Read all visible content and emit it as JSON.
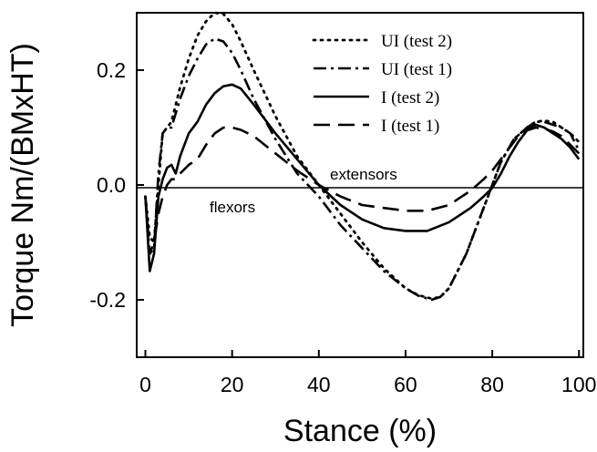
{
  "chart_data": {
    "type": "line",
    "title": "",
    "xlabel": "Stance (%)",
    "ylabel": "Torque Nm/(BMxHT)",
    "xlim": [
      -2,
      101
    ],
    "ylim": [
      -0.3,
      0.3
    ],
    "x_ticks": [
      "0",
      "20",
      "40",
      "60",
      "80",
      "100"
    ],
    "y_ticks": [
      "-0.2",
      "0.0",
      "0.2"
    ],
    "y_tick_values": [
      -0.2,
      0.0,
      0.2
    ],
    "x_tick_values": [
      0,
      20,
      40,
      60,
      80,
      100
    ],
    "grid": false,
    "legend_position": "top-right",
    "annotations": [
      {
        "text": "extensors",
        "x": 42,
        "y": 0.022
      },
      {
        "text": "flexors",
        "x": 13,
        "y": -0.036
      }
    ],
    "series": [
      {
        "name": "UI (test 2)",
        "dash": "dotted",
        "x": [
          0,
          1,
          2,
          3,
          4,
          5,
          6,
          8,
          10,
          12,
          14,
          16,
          18,
          20,
          22,
          25,
          30,
          35,
          40,
          45,
          50,
          55,
          60,
          63,
          66,
          68,
          70,
          74,
          78,
          82,
          85,
          88,
          90,
          92,
          94,
          96,
          98,
          100
        ],
        "y": [
          -0.02,
          -0.09,
          -0.1,
          0.0,
          0.09,
          0.1,
          0.11,
          0.17,
          0.22,
          0.26,
          0.285,
          0.3,
          0.298,
          0.28,
          0.25,
          0.2,
          0.12,
          0.05,
          0.0,
          -0.05,
          -0.1,
          -0.145,
          -0.18,
          -0.192,
          -0.198,
          -0.195,
          -0.18,
          -0.12,
          -0.04,
          0.04,
          0.08,
          0.1,
          0.11,
          0.112,
          0.11,
          0.1,
          0.09,
          0.075
        ]
      },
      {
        "name": "UI (test 1)",
        "dash": "dash-dot",
        "x": [
          0,
          1,
          2,
          3,
          4,
          5,
          6,
          8,
          10,
          12,
          14,
          16,
          18,
          20,
          22,
          25,
          30,
          35,
          40,
          45,
          50,
          55,
          60,
          63,
          66,
          68,
          70,
          74,
          78,
          82,
          85,
          88,
          90,
          92,
          94,
          96,
          98,
          100
        ],
        "y": [
          -0.02,
          -0.12,
          -0.11,
          0.02,
          0.09,
          0.1,
          0.1,
          0.15,
          0.19,
          0.22,
          0.245,
          0.255,
          0.25,
          0.23,
          0.2,
          0.15,
          0.08,
          0.02,
          -0.02,
          -0.07,
          -0.11,
          -0.15,
          -0.18,
          -0.193,
          -0.2,
          -0.195,
          -0.18,
          -0.12,
          -0.04,
          0.04,
          0.08,
          0.1,
          0.11,
          0.11,
          0.105,
          0.1,
          0.09,
          0.06
        ]
      },
      {
        "name": "I (test 2)",
        "dash": "solid",
        "x": [
          0,
          1,
          2,
          3,
          4,
          5,
          6,
          7,
          8,
          10,
          12,
          14,
          16,
          18,
          20,
          22,
          25,
          30,
          35,
          40,
          45,
          50,
          55,
          60,
          65,
          70,
          75,
          78,
          80,
          82,
          84,
          86,
          88,
          90,
          92,
          94,
          96,
          98,
          100
        ],
        "y": [
          -0.02,
          -0.15,
          -0.12,
          -0.02,
          0.01,
          0.03,
          0.035,
          0.02,
          0.05,
          0.09,
          0.11,
          0.14,
          0.16,
          0.172,
          0.175,
          0.168,
          0.14,
          0.09,
          0.045,
          0.0,
          -0.035,
          -0.06,
          -0.075,
          -0.08,
          -0.08,
          -0.065,
          -0.04,
          -0.02,
          -0.005,
          0.02,
          0.05,
          0.075,
          0.095,
          0.105,
          0.1,
          0.09,
          0.08,
          0.065,
          0.045
        ]
      },
      {
        "name": "I (test 1)",
        "dash": "dashed",
        "x": [
          0,
          1,
          2,
          3,
          4,
          5,
          6,
          7,
          8,
          10,
          12,
          14,
          16,
          18,
          20,
          22,
          25,
          30,
          35,
          40,
          45,
          50,
          55,
          60,
          65,
          70,
          75,
          78,
          80,
          82,
          84,
          86,
          88,
          90,
          92,
          94,
          96,
          98,
          100
        ],
        "y": [
          -0.02,
          -0.12,
          -0.1,
          -0.05,
          -0.02,
          0.0,
          0.01,
          0.01,
          0.02,
          0.035,
          0.045,
          0.07,
          0.09,
          0.1,
          0.1,
          0.096,
          0.085,
          0.055,
          0.025,
          0.0,
          -0.02,
          -0.035,
          -0.04,
          -0.045,
          -0.045,
          -0.035,
          -0.01,
          0.01,
          0.025,
          0.045,
          0.065,
          0.085,
          0.095,
          0.1,
          0.098,
          0.093,
          0.085,
          0.07,
          0.055
        ]
      }
    ]
  }
}
